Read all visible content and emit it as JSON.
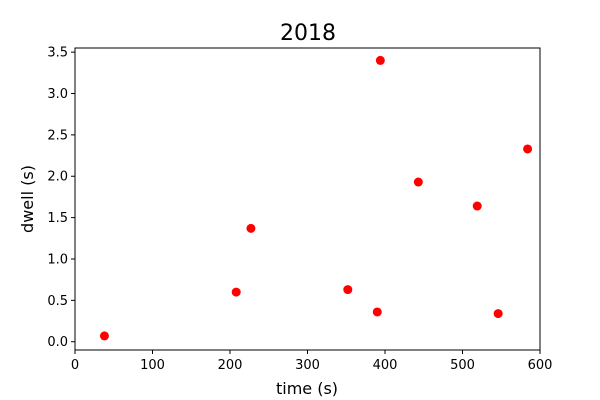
{
  "chart_data": {
    "type": "scatter",
    "title": "2018",
    "xlabel": "time (s)",
    "ylabel": "dwell (s)",
    "xlim": [
      0,
      600
    ],
    "ylim": [
      -0.1,
      3.55
    ],
    "xticks": [
      0,
      100,
      200,
      300,
      400,
      500,
      600
    ],
    "yticks": [
      0.0,
      0.5,
      1.0,
      1.5,
      2.0,
      2.5,
      3.0,
      3.5
    ],
    "ytick_labels": [
      "0.0",
      "0.5",
      "1.0",
      "1.5",
      "2.0",
      "2.5",
      "3.0",
      "3.5"
    ],
    "grid": false,
    "legend": "none",
    "marker_color": "#ff0000",
    "series": [
      {
        "points": [
          {
            "x": 38,
            "y": 0.07
          },
          {
            "x": 208,
            "y": 0.6
          },
          {
            "x": 227,
            "y": 1.37
          },
          {
            "x": 352,
            "y": 0.63
          },
          {
            "x": 390,
            "y": 0.36
          },
          {
            "x": 394,
            "y": 3.4
          },
          {
            "x": 443,
            "y": 1.93
          },
          {
            "x": 519,
            "y": 1.64
          },
          {
            "x": 546,
            "y": 0.34
          },
          {
            "x": 584,
            "y": 2.33
          }
        ]
      }
    ]
  }
}
